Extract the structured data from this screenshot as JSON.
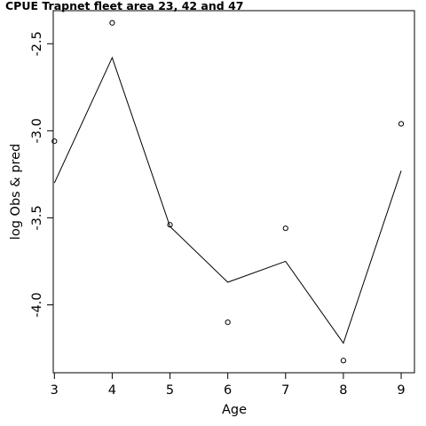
{
  "chart_data": {
    "type": "line",
    "title": "CPUE Trapnet fleet area 23, 42 and 47",
    "xlabel": "Age",
    "ylabel": "log Obs & pred",
    "xlim": [
      2.98,
      9.23
    ],
    "ylim": [
      -4.39,
      -2.31
    ],
    "x_ticks": [
      3,
      4,
      5,
      6,
      7,
      8,
      9
    ],
    "y_ticks": [
      -4.0,
      -3.5,
      -3.0,
      -2.5
    ],
    "x_tick_labels": [
      "3",
      "4",
      "5",
      "6",
      "7",
      "8",
      "9"
    ],
    "y_tick_labels": [
      "-4.0",
      "-3.5",
      "-3.0",
      "-2.5"
    ],
    "grid": false,
    "legend": "none",
    "series": [
      {
        "kind": "points",
        "x": [
          3,
          4,
          5,
          6,
          7,
          8,
          9
        ],
        "y": [
          -3.06,
          -2.38,
          -3.54,
          -4.1,
          -3.56,
          -4.32,
          -2.96
        ]
      },
      {
        "kind": "line",
        "x": [
          3,
          4,
          5,
          6,
          7,
          8,
          9
        ],
        "y": [
          -3.3,
          -2.58,
          -3.55,
          -3.87,
          -3.75,
          -4.22,
          -3.23
        ]
      }
    ]
  }
}
